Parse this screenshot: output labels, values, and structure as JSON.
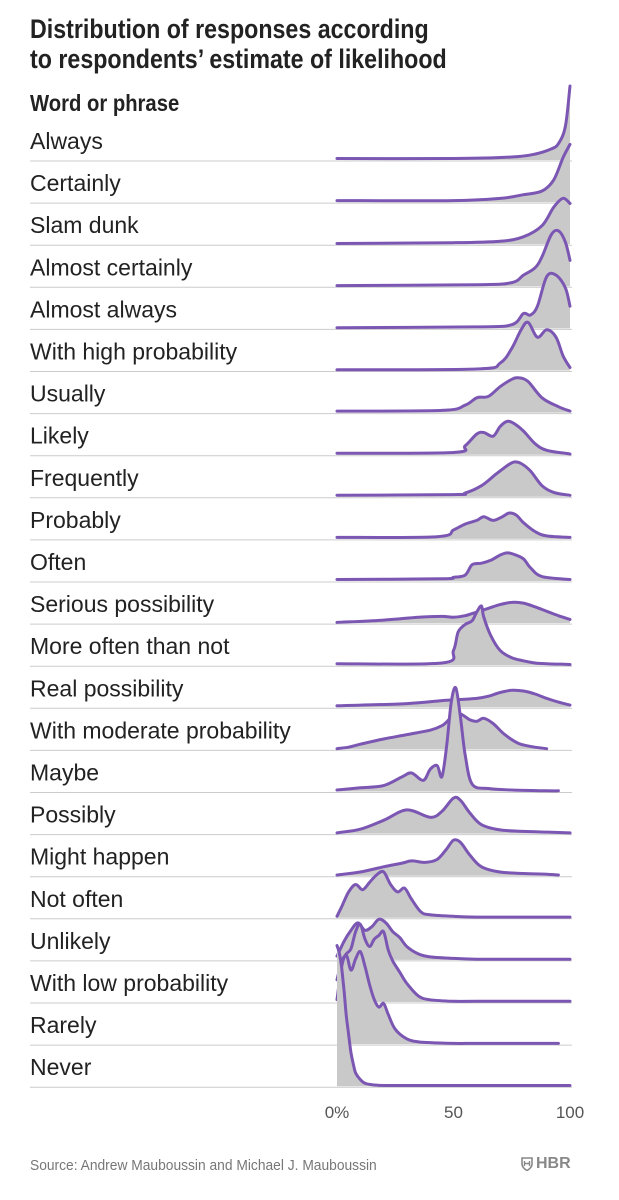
{
  "title": "Distribution of responses according\nto respondents’ estimate of likelihood",
  "column_header": "Word or phrase",
  "source": "Source: Andrew Mauboussin and Michael J. Mauboussin",
  "brand": "HBR",
  "colors": {
    "line": "#7b57b3",
    "fill": "#c9c9c9",
    "rule": "#cccccc",
    "text": "#222222"
  },
  "chart_data": {
    "type": "ridgeline",
    "title": "Distribution of responses according to respondents’ estimate of likelihood",
    "xlabel": "",
    "ylabel": "Word or phrase",
    "xlim": [
      0,
      100
    ],
    "xticks": [
      0,
      50,
      100
    ],
    "xtick_labels": [
      "0%",
      "50",
      "100"
    ],
    "grid": false,
    "rows": [
      {
        "label": "Always",
        "x": [
          0,
          50,
          75,
          85,
          92,
          95,
          98,
          100
        ],
        "density": [
          0.02,
          0.02,
          0.04,
          0.08,
          0.15,
          0.22,
          0.45,
          1.0
        ]
      },
      {
        "label": "Certainly",
        "x": [
          0,
          50,
          70,
          80,
          88,
          93,
          97,
          100
        ],
        "density": [
          0.02,
          0.02,
          0.05,
          0.1,
          0.15,
          0.3,
          0.6,
          0.78
        ]
      },
      {
        "label": "Slam dunk",
        "x": [
          0,
          50,
          70,
          80,
          88,
          93,
          97,
          100
        ],
        "density": [
          0.01,
          0.02,
          0.04,
          0.1,
          0.25,
          0.5,
          0.62,
          0.55
        ]
      },
      {
        "label": "Almost certainly",
        "x": [
          0,
          60,
          75,
          80,
          85,
          88,
          92,
          95,
          98,
          100
        ],
        "density": [
          0.01,
          0.02,
          0.05,
          0.15,
          0.25,
          0.4,
          0.7,
          0.75,
          0.6,
          0.35
        ]
      },
      {
        "label": "Almost always",
        "x": [
          0,
          60,
          75,
          80,
          83,
          86,
          90,
          94,
          98,
          100
        ],
        "density": [
          0.01,
          0.02,
          0.05,
          0.2,
          0.18,
          0.3,
          0.7,
          0.72,
          0.55,
          0.3
        ]
      },
      {
        "label": "With high probability",
        "x": [
          0,
          60,
          70,
          75,
          79,
          82,
          86,
          90,
          94,
          97,
          100
        ],
        "density": [
          0.01,
          0.02,
          0.1,
          0.3,
          0.55,
          0.65,
          0.45,
          0.55,
          0.45,
          0.2,
          0.04
        ]
      },
      {
        "label": "Usually",
        "x": [
          0,
          45,
          55,
          60,
          65,
          70,
          75,
          78,
          82,
          88,
          95,
          100
        ],
        "density": [
          0.02,
          0.03,
          0.1,
          0.2,
          0.22,
          0.35,
          0.45,
          0.47,
          0.42,
          0.2,
          0.08,
          0.02
        ]
      },
      {
        "label": "Likely",
        "x": [
          0,
          50,
          55,
          60,
          63,
          67,
          70,
          73,
          76,
          80,
          85,
          90,
          100
        ],
        "density": [
          0.02,
          0.03,
          0.12,
          0.28,
          0.3,
          0.25,
          0.38,
          0.45,
          0.42,
          0.32,
          0.15,
          0.06,
          0.01
        ]
      },
      {
        "label": "Frequently",
        "x": [
          0,
          50,
          55,
          62,
          68,
          73,
          76,
          79,
          83,
          88,
          93,
          100
        ],
        "density": [
          0.02,
          0.03,
          0.05,
          0.15,
          0.3,
          0.42,
          0.47,
          0.45,
          0.35,
          0.15,
          0.06,
          0.02
        ]
      },
      {
        "label": "Probably",
        "x": [
          0,
          43,
          50,
          55,
          60,
          63,
          67,
          71,
          74,
          77,
          80,
          85,
          90,
          100
        ],
        "density": [
          0.02,
          0.03,
          0.12,
          0.2,
          0.25,
          0.3,
          0.25,
          0.3,
          0.35,
          0.32,
          0.22,
          0.1,
          0.04,
          0.02
        ]
      },
      {
        "label": "Often",
        "x": [
          0,
          45,
          50,
          55,
          58,
          62,
          66,
          70,
          73,
          76,
          80,
          83,
          88,
          100
        ],
        "density": [
          0.02,
          0.03,
          0.05,
          0.08,
          0.22,
          0.24,
          0.28,
          0.35,
          0.38,
          0.36,
          0.3,
          0.18,
          0.06,
          0.02
        ]
      },
      {
        "label": "Serious possibility",
        "x": [
          0,
          20,
          35,
          45,
          50,
          55,
          60,
          65,
          70,
          75,
          80,
          85,
          90,
          95,
          100
        ],
        "density": [
          0.01,
          0.04,
          0.08,
          0.09,
          0.08,
          0.1,
          0.15,
          0.2,
          0.25,
          0.28,
          0.27,
          0.22,
          0.16,
          0.1,
          0.05
        ]
      },
      {
        "label": "More often than not",
        "x": [
          0,
          45,
          50,
          52,
          55,
          58,
          60,
          62,
          63,
          66,
          70,
          75,
          80,
          85,
          90,
          100
        ],
        "density": [
          0.02,
          0.03,
          0.2,
          0.45,
          0.55,
          0.6,
          0.72,
          0.8,
          0.65,
          0.4,
          0.2,
          0.1,
          0.06,
          0.03,
          0.02,
          0.01
        ]
      },
      {
        "label": "Real possibility",
        "x": [
          0,
          30,
          45,
          50,
          55,
          60,
          65,
          70,
          75,
          80,
          85,
          90,
          95,
          100
        ],
        "density": [
          0.02,
          0.05,
          0.09,
          0.1,
          0.11,
          0.12,
          0.15,
          0.2,
          0.23,
          0.22,
          0.18,
          0.12,
          0.07,
          0.03
        ]
      },
      {
        "label": "With moderate probability",
        "x": [
          0,
          5,
          10,
          20,
          30,
          40,
          45,
          48,
          50,
          53,
          57,
          60,
          63,
          67,
          72,
          78,
          85,
          90
        ],
        "density": [
          0.01,
          0.03,
          0.07,
          0.14,
          0.2,
          0.26,
          0.32,
          0.4,
          0.46,
          0.48,
          0.4,
          0.38,
          0.42,
          0.35,
          0.2,
          0.08,
          0.03,
          0.01
        ]
      },
      {
        "label": "Maybe",
        "x": [
          0,
          10,
          20,
          28,
          32,
          37,
          40,
          43,
          45,
          47,
          49,
          51,
          53,
          55,
          58,
          65,
          75,
          90,
          95
        ],
        "density": [
          0.02,
          0.05,
          0.08,
          0.2,
          0.25,
          0.15,
          0.3,
          0.35,
          0.2,
          0.6,
          1.2,
          1.4,
          1.0,
          0.5,
          0.1,
          0.04,
          0.02,
          0.01,
          0.01
        ]
      },
      {
        "label": "Possibly",
        "x": [
          0,
          10,
          20,
          30,
          40,
          45,
          50,
          53,
          57,
          62,
          70,
          80,
          90,
          100
        ],
        "density": [
          0.01,
          0.06,
          0.18,
          0.32,
          0.22,
          0.3,
          0.48,
          0.45,
          0.28,
          0.12,
          0.05,
          0.03,
          0.02,
          0.01
        ]
      },
      {
        "label": "Might happen",
        "x": [
          0,
          10,
          20,
          28,
          32,
          38,
          43,
          47,
          50,
          53,
          57,
          62,
          70,
          80,
          90,
          95
        ],
        "density": [
          0.01,
          0.05,
          0.12,
          0.17,
          0.2,
          0.18,
          0.22,
          0.36,
          0.48,
          0.45,
          0.28,
          0.12,
          0.05,
          0.03,
          0.02,
          0.01
        ]
      },
      {
        "label": "Not often",
        "x": [
          0,
          2,
          5,
          8,
          11,
          14,
          17,
          20,
          23,
          26,
          29,
          32,
          36,
          40,
          50,
          60,
          80,
          100
        ],
        "density": [
          0.02,
          0.15,
          0.35,
          0.45,
          0.38,
          0.48,
          0.58,
          0.62,
          0.45,
          0.35,
          0.4,
          0.25,
          0.08,
          0.04,
          0.02,
          0.01,
          0.01,
          0.01
        ]
      },
      {
        "label": "Unlikely",
        "x": [
          0,
          3,
          6,
          9,
          12,
          15,
          18,
          21,
          24,
          27,
          30,
          35,
          40,
          50,
          60,
          80,
          100
        ],
        "density": [
          0.05,
          0.25,
          0.4,
          0.5,
          0.4,
          0.45,
          0.55,
          0.5,
          0.38,
          0.3,
          0.18,
          0.08,
          0.04,
          0.02,
          0.01,
          0.01,
          0.01
        ]
      },
      {
        "label": "With low probability",
        "x": [
          0,
          2,
          4,
          6,
          8,
          10,
          12,
          14,
          16,
          18,
          20,
          22,
          24,
          27,
          30,
          35,
          40,
          50,
          60,
          100
        ],
        "density": [
          0.3,
          0.55,
          0.65,
          0.72,
          0.95,
          1.05,
          0.85,
          0.75,
          0.85,
          0.9,
          0.95,
          0.7,
          0.55,
          0.4,
          0.25,
          0.08,
          0.03,
          0.01,
          0.01,
          0.01
        ]
      },
      {
        "label": "Rarely",
        "x": [
          0,
          2,
          4,
          6,
          8,
          10,
          12,
          14,
          16,
          18,
          20,
          22,
          25,
          30,
          35,
          40,
          50,
          60,
          80,
          95
        ],
        "density": [
          0.6,
          1.05,
          1.2,
          1.0,
          1.15,
          1.25,
          1.05,
          0.8,
          0.6,
          0.5,
          0.55,
          0.4,
          0.2,
          0.07,
          0.03,
          0.02,
          0.01,
          0.01,
          0.01,
          0.01
        ]
      },
      {
        "label": "Never",
        "x": [
          0,
          1,
          2,
          3,
          4,
          5,
          6,
          7,
          8,
          10,
          12,
          15,
          20,
          30,
          50,
          100
        ],
        "density": [
          1.9,
          1.8,
          1.6,
          1.3,
          0.95,
          0.7,
          0.45,
          0.3,
          0.18,
          0.09,
          0.04,
          0.02,
          0.01,
          0.01,
          0.01,
          0.01
        ]
      }
    ]
  }
}
